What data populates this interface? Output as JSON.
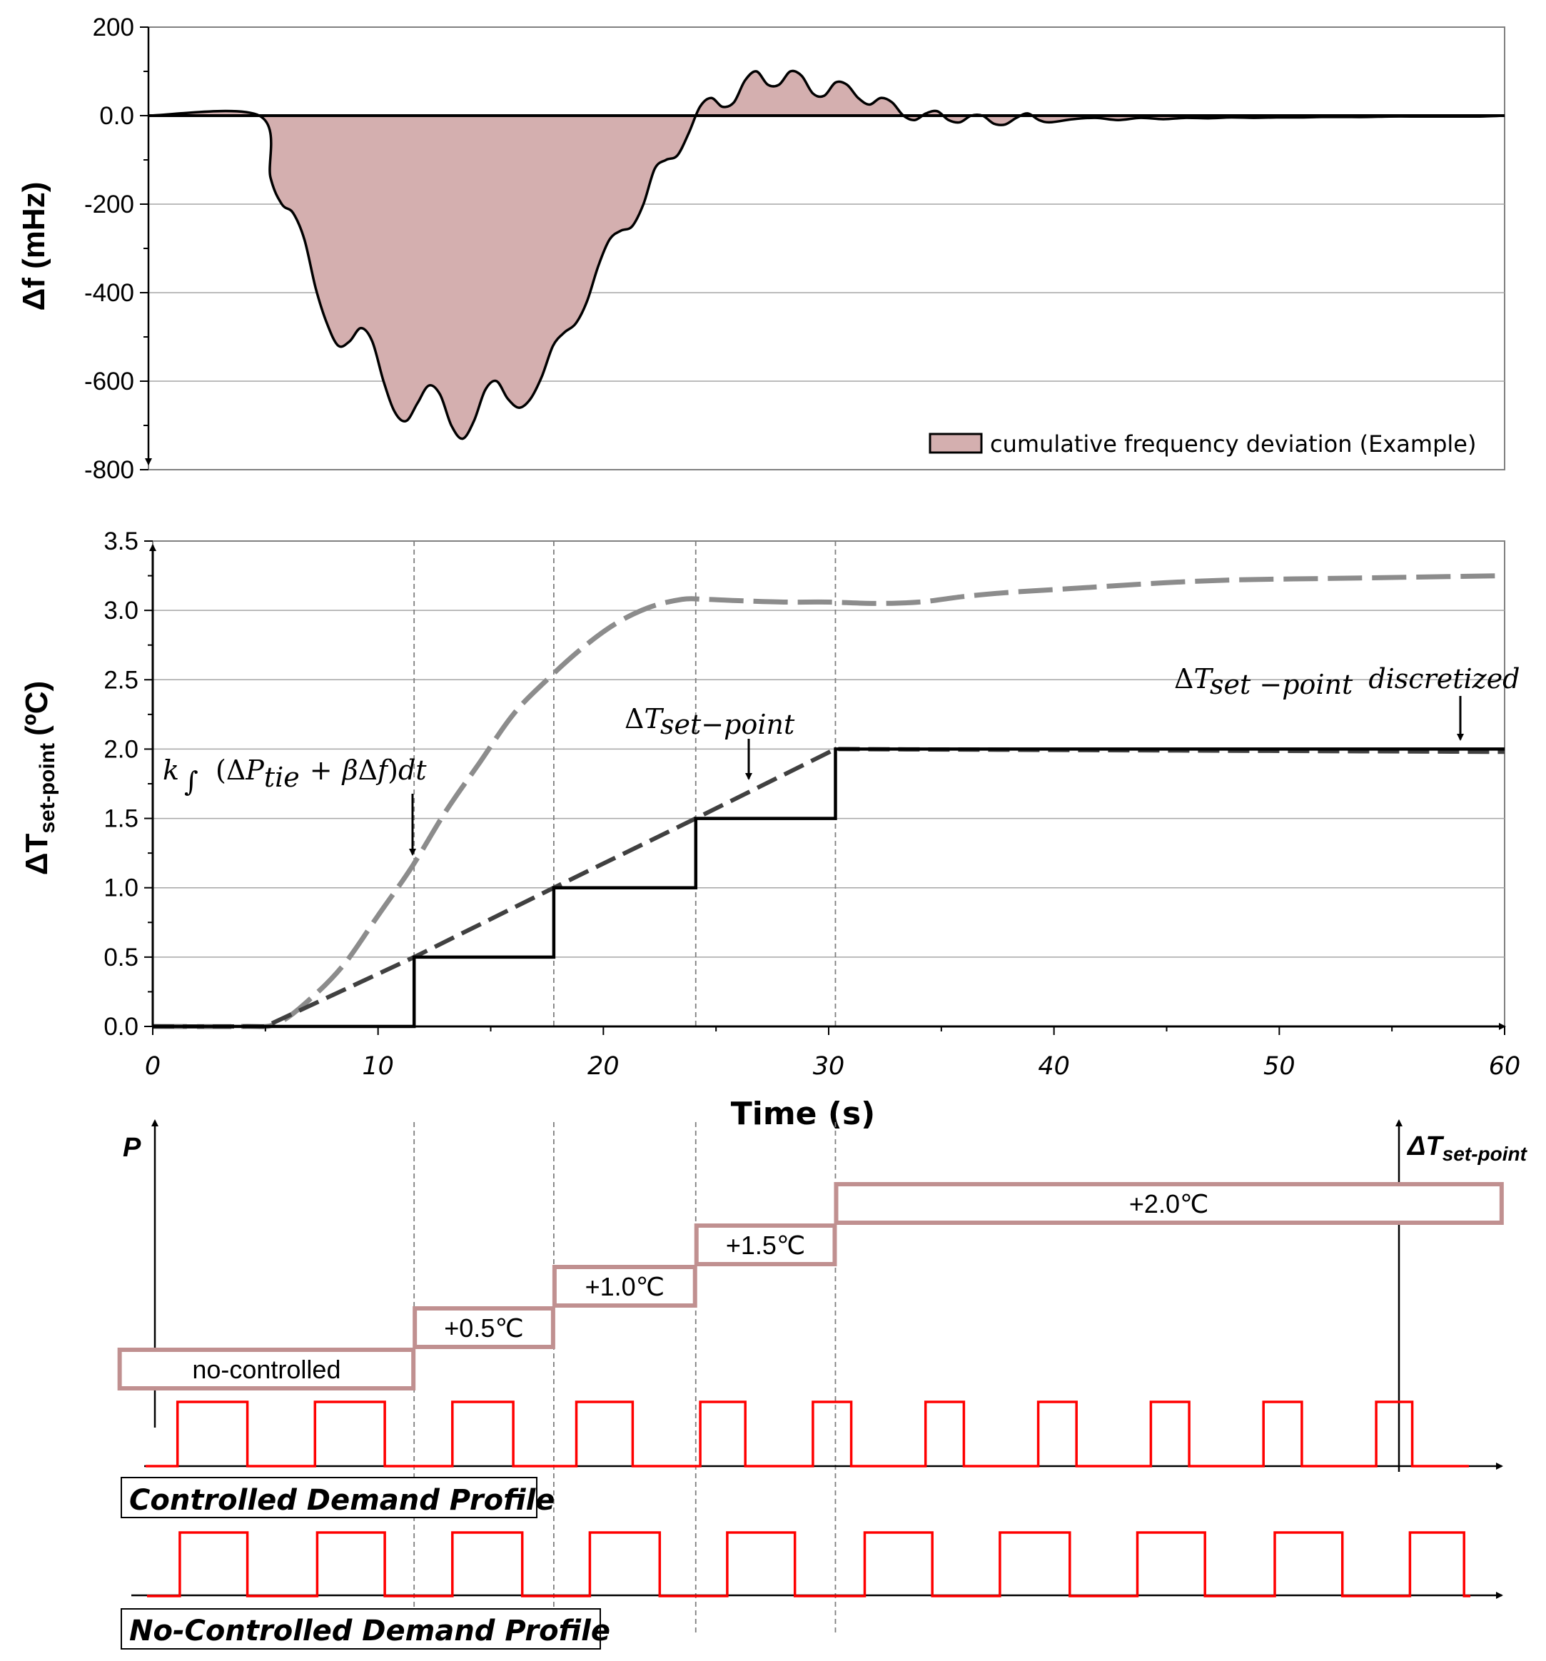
{
  "chart_data": [
    {
      "type": "area",
      "ylabel": "Δf (mHz)",
      "ylim": [
        -800,
        200
      ],
      "yticks": [
        "200",
        "0.0",
        "-200",
        "-400",
        "-600",
        "-800"
      ],
      "xlim": [
        0,
        60
      ],
      "legend": "cumulative frequency deviation (Example)",
      "legend_position": "bottom-right",
      "fill_color": "#d4afaf",
      "series": [
        {
          "name": "cumulative frequency deviation (Example)",
          "x": [
            0,
            4.9,
            5.4,
            5.9,
            6.4,
            6.9,
            7.4,
            7.9,
            8.4,
            8.9,
            9.4,
            9.9,
            10.4,
            10.9,
            11.4,
            11.9,
            12.4,
            12.9,
            13.4,
            13.9,
            14.4,
            14.9,
            15.4,
            15.9,
            16.4,
            16.9,
            17.4,
            17.9,
            18.4,
            18.9,
            19.4,
            19.9,
            20.4,
            20.9,
            21.4,
            21.9,
            22.4,
            22.9,
            23.4,
            23.9,
            24.4,
            24.9,
            25.4,
            25.9,
            26.4,
            26.9,
            27.4,
            27.9,
            28.4,
            28.9,
            29.4,
            29.9,
            30.4,
            30.9,
            31.4,
            31.9,
            32.4,
            32.9,
            33.4,
            33.9,
            34.4,
            34.9,
            35.4,
            35.9,
            36.4,
            36.9,
            37.4,
            37.9,
            38.4,
            38.9,
            39.4,
            39.9,
            40.9,
            41.9,
            42.9,
            43.9,
            44.9,
            45.9,
            46.9,
            47.9,
            48.9,
            49.9,
            50.9,
            51.9,
            52.9,
            53.9,
            54.9,
            55.9,
            56.9,
            57.9,
            58.9,
            60
          ],
          "values": [
            0,
            0,
            -140,
            -200,
            -220,
            -280,
            -390,
            -470,
            -520,
            -510,
            -480,
            -510,
            -600,
            -670,
            -690,
            -650,
            -610,
            -630,
            -700,
            -730,
            -690,
            -620,
            -600,
            -640,
            -660,
            -640,
            -590,
            -520,
            -490,
            -470,
            -420,
            -340,
            -280,
            -260,
            -250,
            -200,
            -120,
            -100,
            -90,
            -40,
            20,
            40,
            20,
            30,
            80,
            100,
            70,
            70,
            100,
            90,
            50,
            45,
            75,
            70,
            40,
            25,
            40,
            30,
            0,
            -10,
            5,
            10,
            -10,
            -15,
            0,
            0,
            -18,
            -20,
            -5,
            5,
            -10,
            -15,
            -8,
            -5,
            -10,
            -5,
            -8,
            -5,
            -6,
            -4,
            -5,
            -4,
            -4,
            -3,
            -3,
            -3,
            -2,
            -2,
            -2,
            -2,
            -2,
            0
          ]
        }
      ]
    },
    {
      "type": "line",
      "ylabel": "ΔT",
      "ylabel_sub": "set-point",
      "ylabel_unit": "(ºC)",
      "xlabel": "Time (s)",
      "xlim": [
        0,
        60
      ],
      "ylim": [
        0,
        3.5
      ],
      "xticks": [
        "0",
        "10",
        "20",
        "30",
        "40",
        "50",
        "60"
      ],
      "yticks": [
        "0.0",
        "0.5",
        "1.0",
        "1.5",
        "2.0",
        "2.5",
        "3.0",
        "3.5"
      ],
      "step_times": [
        11.6,
        17.8,
        24.1,
        30.3
      ],
      "series": [
        {
          "name": "k ∫(ΔP_tie + βΔf)dt",
          "style": "light-gray long dash",
          "x": [
            0,
            4,
            5.5,
            7,
            8.5,
            10,
            11.5,
            13,
            14.5,
            16,
            17.5,
            19,
            20.5,
            22,
            23.5,
            24.5,
            26,
            28,
            30,
            32,
            34,
            36,
            38,
            40,
            42,
            45,
            48,
            52,
            56,
            60
          ],
          "values": [
            0,
            0,
            0.02,
            0.2,
            0.45,
            0.8,
            1.15,
            1.55,
            1.9,
            2.25,
            2.5,
            2.72,
            2.9,
            3.02,
            3.08,
            3.08,
            3.07,
            3.06,
            3.06,
            3.05,
            3.06,
            3.1,
            3.13,
            3.15,
            3.17,
            3.2,
            3.22,
            3.23,
            3.24,
            3.25
          ]
        },
        {
          "name": "ΔT_set−point",
          "style": "dark-gray dash",
          "x": [
            0,
            5,
            11.6,
            17.8,
            24.1,
            30.3,
            60
          ],
          "values": [
            0,
            0,
            0.5,
            1.0,
            1.5,
            2.0,
            1.98
          ]
        },
        {
          "name": "ΔT_set−point discretized",
          "style": "black step",
          "x": [
            0,
            11.6,
            11.6,
            17.8,
            17.8,
            24.1,
            24.1,
            30.3,
            30.3,
            60
          ],
          "values": [
            0,
            0,
            0.5,
            0.5,
            1.0,
            1.0,
            1.5,
            1.5,
            2.0,
            2.0
          ]
        }
      ],
      "annotations": [
        {
          "text_k": "k",
          "text_open": "(Δ",
          "text_P": "P",
          "text_tie": "tie",
          "text_plus": "+",
          "text_beta": "β",
          "text_df": "Δ",
          "text_f": "f",
          "text_close": ")",
          "text_dt": "dt",
          "arrow_to": [
            11.6,
            1.1
          ]
        },
        {
          "text_delta": "Δ",
          "text_T": "T",
          "text_sub": "set−point",
          "arrow_to": [
            26.5,
            1.75
          ]
        },
        {
          "text_delta": "Δ",
          "text_T": "T",
          "text_sub": "set −point",
          "text_suffix": "discretized",
          "arrow_to": [
            58.8,
            2.05
          ]
        }
      ]
    }
  ],
  "demand_panel": {
    "axis_p_label": "P",
    "axis_dt_label_delta": "Δ",
    "axis_dt_label_T": "T",
    "axis_dt_label_sub": "set-point",
    "boxes": [
      {
        "label": "no-controlled",
        "level": 0
      },
      {
        "label": "+0.5℃",
        "level": 1
      },
      {
        "label": "+1.0℃",
        "level": 2
      },
      {
        "label": "+1.5℃",
        "level": 3
      },
      {
        "label": "+2.0℃",
        "level": 4
      }
    ],
    "box_border_color": "#c09090",
    "pulse_color": "#ff0000",
    "controlled_profile": {
      "label": "Controlled Demand Profile",
      "pulses_time": [
        [
          1.1,
          4.2
        ],
        [
          7.2,
          10.3
        ],
        [
          13.3,
          16.0
        ],
        [
          18.8,
          21.3
        ],
        [
          24.3,
          26.3
        ],
        [
          29.3,
          31.0
        ],
        [
          34.3,
          36.0
        ],
        [
          39.3,
          41.0
        ],
        [
          44.3,
          46.0
        ],
        [
          49.3,
          51.0
        ],
        [
          54.3,
          55.9
        ]
      ]
    },
    "no_controlled_profile": {
      "label": "No-Controlled Demand Profile",
      "pulses_time": [
        [
          1.2,
          4.2
        ],
        [
          7.3,
          10.3
        ],
        [
          13.3,
          16.4
        ],
        [
          19.4,
          22.5
        ],
        [
          25.5,
          28.5
        ],
        [
          31.6,
          34.6
        ],
        [
          37.6,
          40.7
        ],
        [
          43.7,
          46.7
        ],
        [
          49.8,
          52.8
        ],
        [
          55.8,
          58.2
        ]
      ]
    }
  }
}
